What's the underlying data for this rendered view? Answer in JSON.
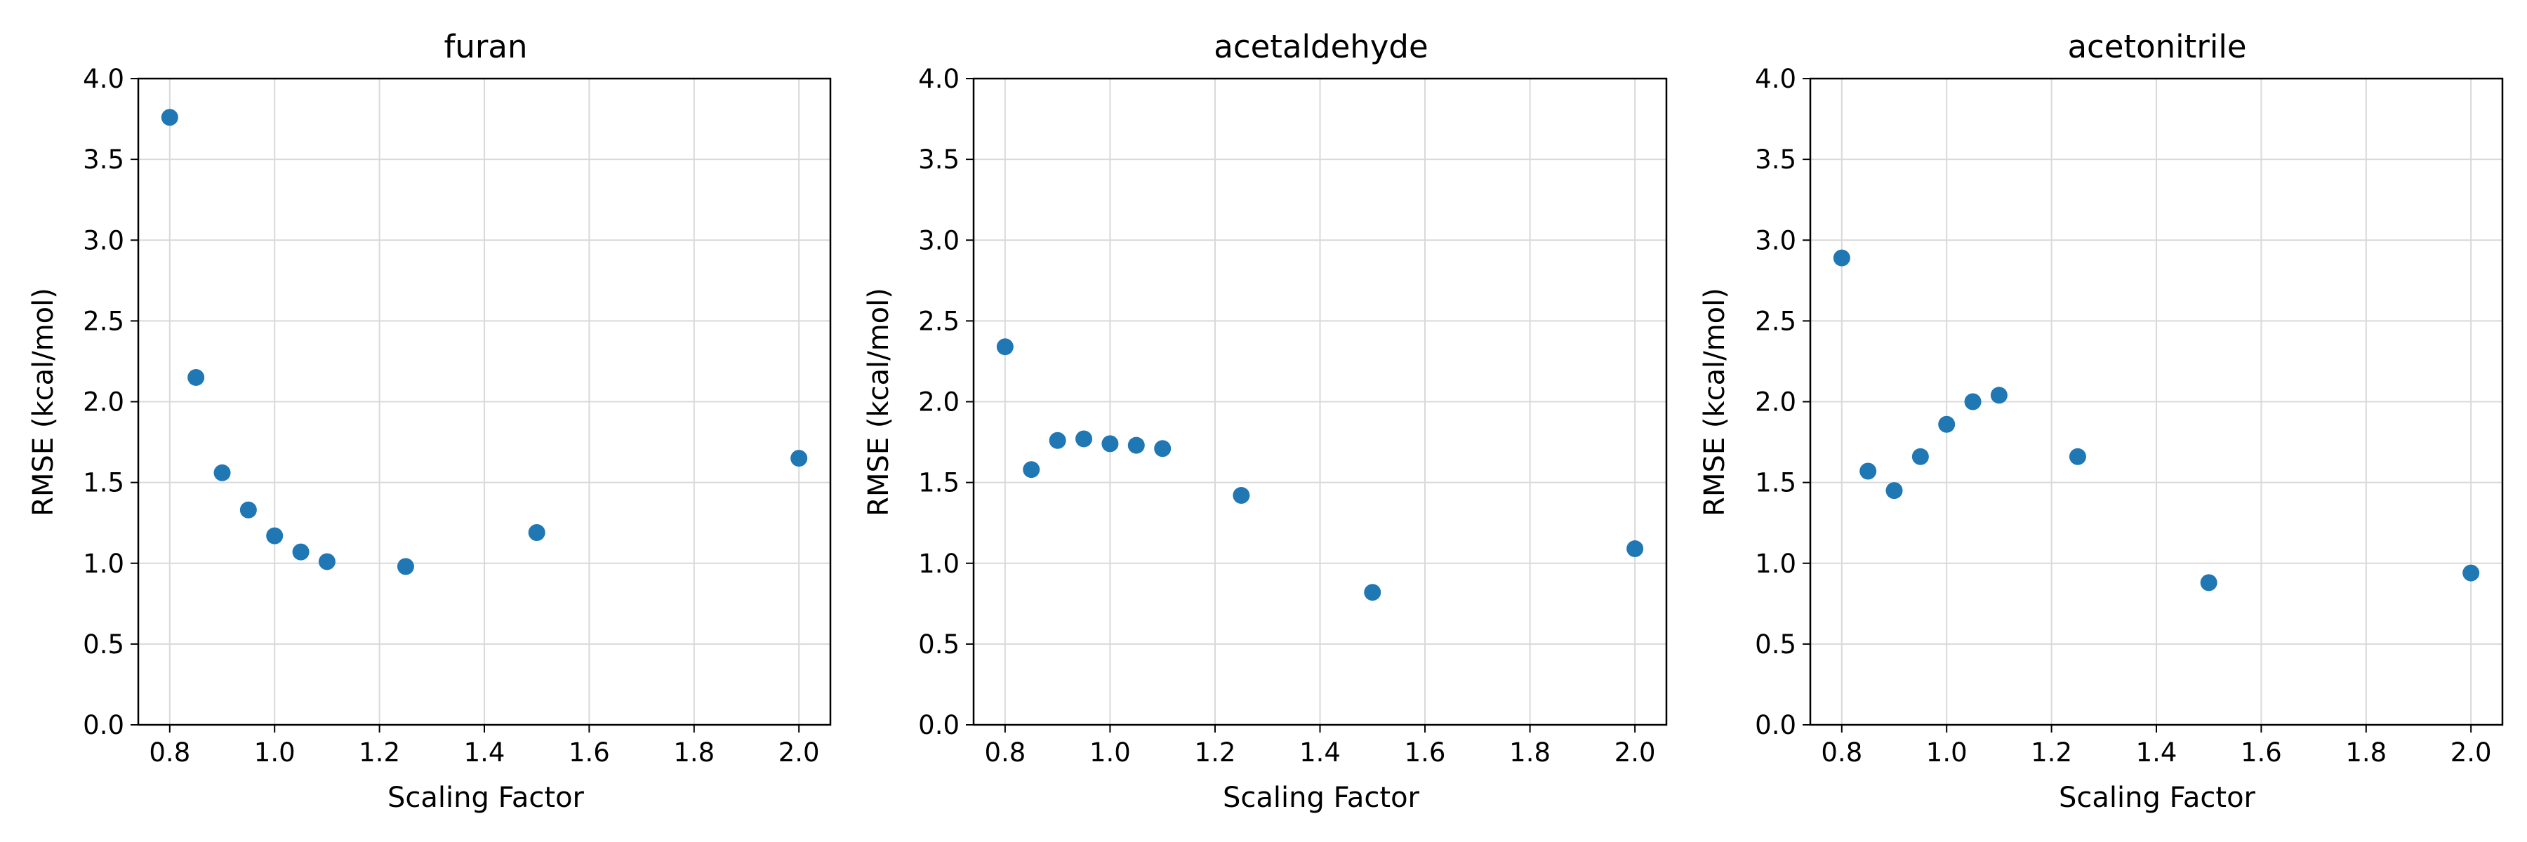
{
  "chart_data": [
    {
      "type": "scatter",
      "title": "furan",
      "xlabel": "Scaling Factor",
      "ylabel": "RMSE (kcal/mol)",
      "xlim": [
        0.74,
        2.06
      ],
      "ylim": [
        0,
        4
      ],
      "xticks": [
        "0.8",
        "1.0",
        "1.2",
        "1.4",
        "1.6",
        "1.8",
        "2.0"
      ],
      "yticks": [
        "0.0",
        "0.5",
        "1.0",
        "1.5",
        "2.0",
        "2.5",
        "3.0",
        "3.5",
        "4.0"
      ],
      "grid": true,
      "x": [
        0.8,
        0.85,
        0.9,
        0.95,
        1.0,
        1.05,
        1.1,
        1.25,
        1.5,
        2.0
      ],
      "y": [
        3.76,
        2.15,
        1.56,
        1.33,
        1.17,
        1.07,
        1.01,
        0.98,
        1.19,
        1.65
      ]
    },
    {
      "type": "scatter",
      "title": "acetaldehyde",
      "xlabel": "Scaling Factor",
      "ylabel": "RMSE (kcal/mol)",
      "xlim": [
        0.74,
        2.06
      ],
      "ylim": [
        0,
        4
      ],
      "xticks": [
        "0.8",
        "1.0",
        "1.2",
        "1.4",
        "1.6",
        "1.8",
        "2.0"
      ],
      "yticks": [
        "0.0",
        "0.5",
        "1.0",
        "1.5",
        "2.0",
        "2.5",
        "3.0",
        "3.5",
        "4.0"
      ],
      "grid": true,
      "x": [
        0.8,
        0.85,
        0.9,
        0.95,
        1.0,
        1.05,
        1.1,
        1.25,
        1.5,
        2.0
      ],
      "y": [
        2.34,
        1.58,
        1.76,
        1.77,
        1.74,
        1.73,
        1.71,
        1.42,
        0.82,
        1.09
      ]
    },
    {
      "type": "scatter",
      "title": "acetonitrile",
      "xlabel": "Scaling Factor",
      "ylabel": "RMSE (kcal/mol)",
      "xlim": [
        0.74,
        2.06
      ],
      "ylim": [
        0,
        4
      ],
      "xticks": [
        "0.8",
        "1.0",
        "1.2",
        "1.4",
        "1.6",
        "1.8",
        "2.0"
      ],
      "yticks": [
        "0.0",
        "0.5",
        "1.0",
        "1.5",
        "2.0",
        "2.5",
        "3.0",
        "3.5",
        "4.0"
      ],
      "grid": true,
      "x": [
        0.8,
        0.85,
        0.9,
        0.95,
        1.0,
        1.05,
        1.1,
        1.25,
        1.5,
        2.0
      ],
      "y": [
        2.89,
        1.57,
        1.45,
        1.66,
        1.86,
        2.0,
        2.04,
        1.66,
        0.88,
        0.94
      ]
    }
  ],
  "colors": {
    "marker": "#1f77b4",
    "grid": "#d9d9d9",
    "axis": "#000000",
    "background": "#ffffff"
  }
}
